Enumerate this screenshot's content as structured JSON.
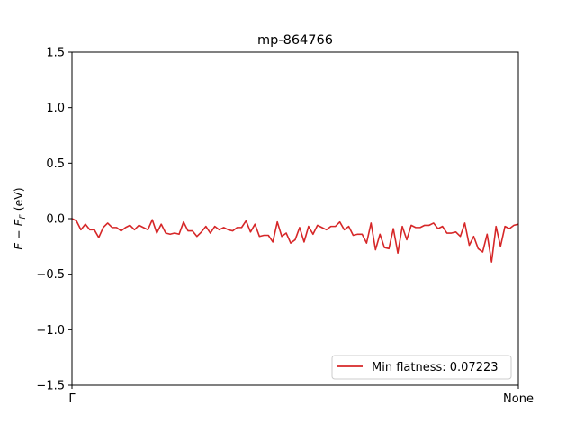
{
  "chart_data": {
    "type": "line",
    "title": "mp-864766",
    "xlabel": "",
    "ylabel": "E − E_F (eV)",
    "ylabel_parts": {
      "e": "E",
      "minus": " − ",
      "ef": "E",
      "sub": "F",
      "unit": " (eV)"
    },
    "ylim": [
      -1.5,
      1.5
    ],
    "yticks": [
      -1.5,
      -1.0,
      -0.5,
      0.0,
      0.5,
      1.0,
      1.5
    ],
    "ytick_labels": [
      "−1.5",
      "−1.0",
      "−0.5",
      "0.0",
      "0.5",
      "1.0",
      "1.5"
    ],
    "xlim": [
      0,
      100
    ],
    "xticks": [
      0,
      100
    ],
    "xtick_labels": [
      "Γ",
      "None"
    ],
    "grid": false,
    "legend": {
      "location": "lower right",
      "entries": [
        "Min flatness: 0.07223"
      ]
    },
    "series": [
      {
        "name": "Min flatness: 0.07223",
        "color": "#d62728",
        "x": [
          0,
          1,
          2,
          3,
          4,
          5,
          6,
          7,
          8,
          9,
          10,
          11,
          12,
          13,
          14,
          15,
          16,
          17,
          18,
          19,
          20,
          21,
          22,
          23,
          24,
          25,
          26,
          27,
          28,
          29,
          30,
          31,
          32,
          33,
          34,
          35,
          36,
          37,
          38,
          39,
          40,
          41,
          42,
          43,
          44,
          45,
          46,
          47,
          48,
          49,
          50,
          51,
          52,
          53,
          54,
          55,
          56,
          57,
          58,
          59,
          60,
          61,
          62,
          63,
          64,
          65,
          66,
          67,
          68,
          69,
          70,
          71,
          72,
          73,
          74,
          75,
          76,
          77,
          78,
          79,
          80,
          81,
          82,
          83,
          84,
          85,
          86,
          87,
          88,
          89,
          90,
          91,
          92,
          93,
          94,
          95,
          96,
          97,
          98,
          99,
          100
        ],
        "y": [
          0.0,
          -0.02,
          -0.1,
          -0.05,
          -0.1,
          -0.1,
          -0.17,
          -0.08,
          -0.04,
          -0.08,
          -0.08,
          -0.11,
          -0.08,
          -0.06,
          -0.1,
          -0.06,
          -0.08,
          -0.1,
          -0.01,
          -0.13,
          -0.05,
          -0.13,
          -0.14,
          -0.13,
          -0.14,
          -0.03,
          -0.11,
          -0.11,
          -0.16,
          -0.12,
          -0.07,
          -0.13,
          -0.07,
          -0.1,
          -0.08,
          -0.1,
          -0.11,
          -0.08,
          -0.08,
          -0.02,
          -0.12,
          -0.05,
          -0.16,
          -0.15,
          -0.15,
          -0.21,
          -0.03,
          -0.16,
          -0.13,
          -0.22,
          -0.19,
          -0.08,
          -0.21,
          -0.07,
          -0.14,
          -0.06,
          -0.08,
          -0.1,
          -0.07,
          -0.07,
          -0.03,
          -0.1,
          -0.07,
          -0.15,
          -0.14,
          -0.14,
          -0.22,
          -0.04,
          -0.28,
          -0.14,
          -0.26,
          -0.27,
          -0.09,
          -0.31,
          -0.07,
          -0.19,
          -0.06,
          -0.08,
          -0.08,
          -0.06,
          -0.06,
          -0.04,
          -0.09,
          -0.07,
          -0.13,
          -0.13,
          -0.12,
          -0.16,
          -0.04,
          -0.24,
          -0.16,
          -0.27,
          -0.3,
          -0.14,
          -0.39,
          -0.07,
          -0.25,
          -0.07,
          -0.09,
          -0.06,
          -0.05
        ]
      }
    ]
  }
}
